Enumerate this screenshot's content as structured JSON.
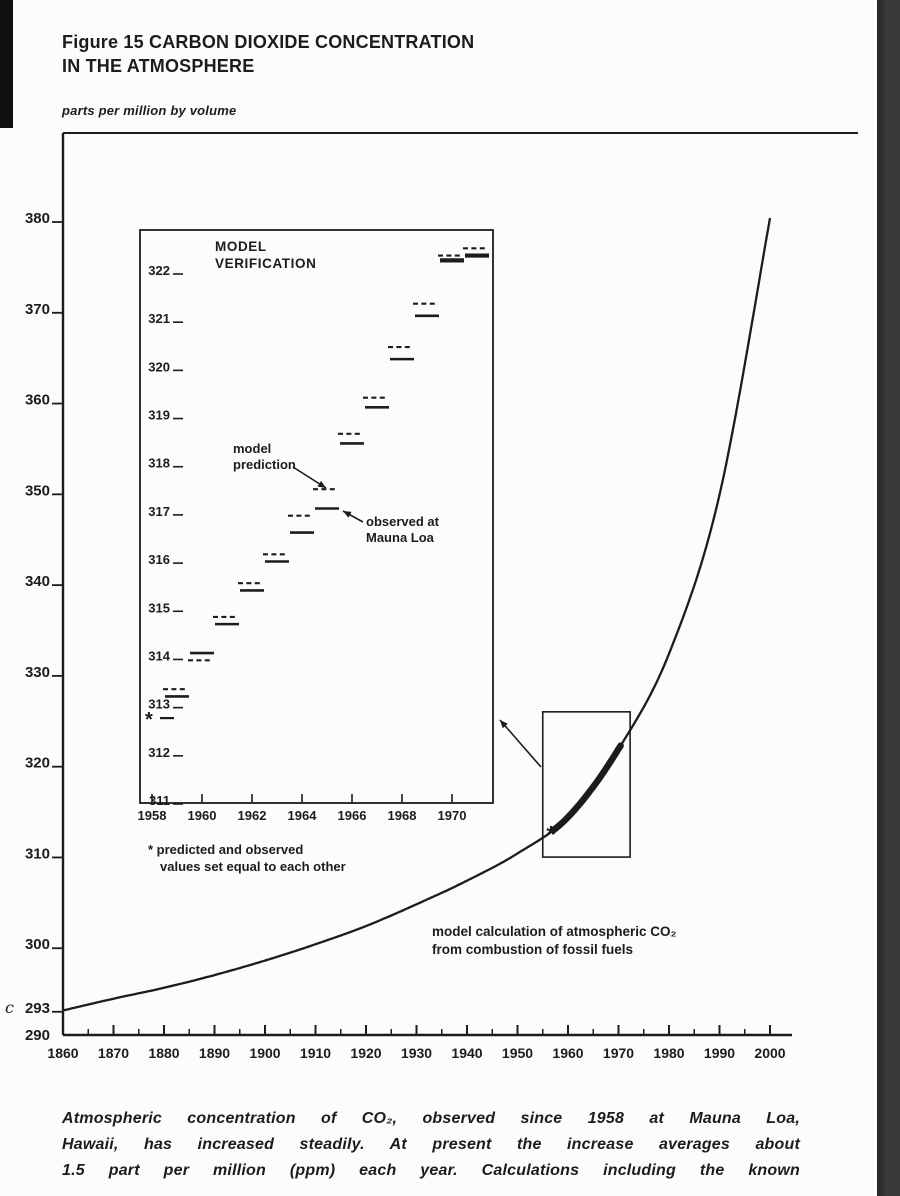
{
  "page": {
    "background": "#fcfcfa",
    "ink": "#1c1c1c",
    "scan_edge_color": "#3a3a3a",
    "corner_bar_color": "#111111"
  },
  "figure": {
    "title_line1": "Figure 15 CARBON DIOXIDE CONCENTRATION",
    "title_line2": "IN THE ATMOSPHERE",
    "unit_label": "parts per million by volume",
    "stray_mark": "c"
  },
  "caption": {
    "lines": [
      "Atmospheric concentration of CO₂, observed since 1958 at Mauna Loa,",
      "Hawaii, has increased steadily. At present the increase averages about",
      "1.5 part per million (ppm) each year. Calculations including the known"
    ]
  },
  "chart_data": {
    "type": "line",
    "title": "Figure 15 Carbon dioxide concentration in the atmosphere",
    "ylabel": "parts per million by volume",
    "xlim": [
      1860,
      2000
    ],
    "ylim": [
      290,
      385
    ],
    "grid": false,
    "x_ticks": [
      1860,
      1870,
      1880,
      1890,
      1900,
      1910,
      1920,
      1930,
      1940,
      1950,
      1960,
      1970,
      1980,
      1990,
      2000
    ],
    "y_ticks": [
      380,
      370,
      360,
      350,
      340,
      330,
      320,
      310,
      300
    ],
    "y_ticks_extra": [
      293,
      290
    ],
    "main_series": {
      "name": "model calculation of atmospheric CO₂ from combustion of fossil fuels",
      "x": [
        1860,
        1870,
        1880,
        1890,
        1900,
        1910,
        1920,
        1930,
        1940,
        1950,
        1960,
        1970,
        1980,
        1990,
        2000
      ],
      "y": [
        292.7,
        294,
        295.2,
        296.6,
        298.2,
        300,
        302,
        304.4,
        307,
        310,
        314,
        321.5,
        332,
        349.5,
        380
      ]
    },
    "observed_overlay": {
      "name": "observed at Mauna Loa (heavy segment on curve)",
      "year_range": [
        1956.8,
        1970.6
      ]
    },
    "annotation_line1": "model calculation of atmospheric CO₂",
    "annotation_line2": "from combustion of fossil fuels",
    "highlight_box": {
      "years": [
        1955,
        1972.3
      ],
      "values": [
        309.6,
        325.6
      ]
    },
    "asterisk": {
      "year": 1957.3,
      "value": 312.2
    },
    "inset": {
      "type": "line-segments",
      "title_line1": "MODEL",
      "title_line2": "VERIFICATION",
      "xlim": [
        1957.5,
        1971.6
      ],
      "ylim": [
        311,
        322.6
      ],
      "y_ticks": [
        322,
        321,
        320,
        319,
        318,
        317,
        316,
        315,
        314,
        313,
        312,
        311
      ],
      "x_ticks": [
        1958,
        1960,
        1962,
        1964,
        1966,
        1968,
        1970
      ],
      "years": [
        1958,
        1959,
        1960,
        1961,
        1962,
        1963,
        1964,
        1965,
        1966,
        1967,
        1968,
        1969,
        1970,
        1971
      ],
      "model_prediction": [
        312.7,
        313.3,
        313.9,
        314.8,
        315.5,
        316.1,
        316.9,
        317.45,
        318.6,
        319.35,
        320.4,
        321.3,
        322.3,
        322.45
      ],
      "observed": [
        312.7,
        313.15,
        314.05,
        314.65,
        315.35,
        315.95,
        316.55,
        317.05,
        318.4,
        319.15,
        320.15,
        321.05,
        322.2,
        322.3
      ],
      "label_model_line1": "model",
      "label_model_line2": "prediction",
      "label_observed_line1": "observed at",
      "label_observed_line2": "Mauna Loa",
      "footnote_line1": "* predicted and observed",
      "footnote_line2": "values set equal to each other"
    }
  }
}
